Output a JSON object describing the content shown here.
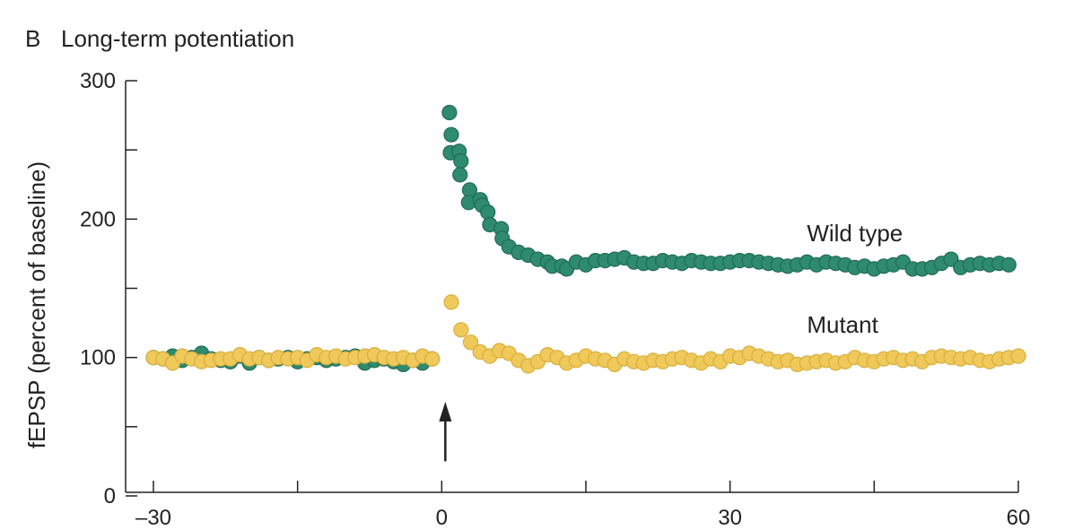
{
  "chart_data": {
    "type": "scatter",
    "panel_letter": "B",
    "title": "Long-term potentiation",
    "xlabel": "",
    "ylabel": "fEPSP (percent of baseline)",
    "xlim": [
      -30,
      60
    ],
    "ylim": [
      0,
      300
    ],
    "x_tick_labels": [
      {
        "value": -30,
        "label": "–30"
      },
      {
        "value": 0,
        "label": "0"
      },
      {
        "value": 30,
        "label": "30"
      },
      {
        "value": 60,
        "label": "60"
      }
    ],
    "x_minor_ticks": [
      -15,
      15,
      45
    ],
    "y_tick_labels": [
      {
        "value": 0,
        "label": "0"
      },
      {
        "value": 100,
        "label": "100"
      },
      {
        "value": 200,
        "label": "200"
      },
      {
        "value": 300,
        "label": "300"
      }
    ],
    "y_minor_ticks": [
      50,
      150,
      250
    ],
    "annotation": {
      "type": "arrow",
      "x": 0,
      "y_from": 25,
      "y_to": 68
    },
    "series": [
      {
        "name": "Wild type",
        "label": "Wild type",
        "label_at": [
          38,
          184
        ],
        "color": "#2f8b6e",
        "edge": "#1f6b54",
        "points": [
          [
            -30,
            100
          ],
          [
            -29,
            99
          ],
          [
            -28,
            101
          ],
          [
            -27,
            98
          ],
          [
            -26,
            100
          ],
          [
            -25,
            103
          ],
          [
            -24,
            99
          ],
          [
            -23,
            98
          ],
          [
            -22,
            97
          ],
          [
            -21,
            101
          ],
          [
            -20,
            96
          ],
          [
            -19,
            100
          ],
          [
            -18,
            98
          ],
          [
            -17,
            99
          ],
          [
            -16,
            100
          ],
          [
            -15,
            97
          ],
          [
            -14,
            99
          ],
          [
            -13,
            100
          ],
          [
            -12,
            98
          ],
          [
            -11,
            99
          ],
          [
            -10,
            100
          ],
          [
            -9,
            101
          ],
          [
            -8,
            96
          ],
          [
            -7,
            98
          ],
          [
            -6,
            99
          ],
          [
            -5,
            97
          ],
          [
            -4,
            95
          ],
          [
            -3,
            98
          ],
          [
            -2,
            96
          ],
          [
            -1,
            99
          ],
          [
            0.8,
            277
          ],
          [
            1,
            261
          ],
          [
            0.9,
            248
          ],
          [
            1.8,
            249
          ],
          [
            2.0,
            242
          ],
          [
            1.9,
            232
          ],
          [
            2.9,
            221
          ],
          [
            2.8,
            212
          ],
          [
            4,
            214
          ],
          [
            4.2,
            210
          ],
          [
            4.8,
            205
          ],
          [
            5,
            196
          ],
          [
            6.2,
            193
          ],
          [
            6.3,
            186
          ],
          [
            7,
            180
          ],
          [
            8,
            176
          ],
          [
            9,
            174
          ],
          [
            10,
            171
          ],
          [
            11,
            169
          ],
          [
            11.5,
            166
          ],
          [
            12.5,
            166
          ],
          [
            13,
            164
          ],
          [
            14,
            169
          ],
          [
            15,
            167
          ],
          [
            16,
            170
          ],
          [
            17,
            170
          ],
          [
            18,
            171
          ],
          [
            19,
            172
          ],
          [
            20,
            169
          ],
          [
            21,
            168
          ],
          [
            22,
            168
          ],
          [
            23,
            170
          ],
          [
            24,
            169
          ],
          [
            25,
            168
          ],
          [
            26,
            170
          ],
          [
            27,
            169
          ],
          [
            28,
            168
          ],
          [
            29,
            168
          ],
          [
            30,
            169
          ],
          [
            31,
            170
          ],
          [
            32,
            170
          ],
          [
            33,
            169
          ],
          [
            34,
            168
          ],
          [
            35,
            167
          ],
          [
            36,
            166
          ],
          [
            37,
            167
          ],
          [
            38,
            169
          ],
          [
            39,
            167
          ],
          [
            40,
            169
          ],
          [
            41,
            168
          ],
          [
            42,
            167
          ],
          [
            43,
            165
          ],
          [
            44,
            166
          ],
          [
            45,
            164
          ],
          [
            46,
            166
          ],
          [
            47,
            167
          ],
          [
            48,
            169
          ],
          [
            49,
            164
          ],
          [
            50,
            164
          ],
          [
            51,
            165
          ],
          [
            52,
            168
          ],
          [
            53,
            171
          ],
          [
            54,
            165
          ],
          [
            55,
            167
          ],
          [
            56,
            168
          ],
          [
            57,
            167
          ],
          [
            58,
            168
          ],
          [
            59,
            167
          ]
        ]
      },
      {
        "name": "Mutant",
        "label": "Mutant",
        "label_at": [
          38,
          118
        ],
        "color": "#efc95a",
        "edge": "#d9ae3c",
        "points": [
          [
            -30,
            100
          ],
          [
            -29,
            99
          ],
          [
            -28,
            96
          ],
          [
            -27,
            101
          ],
          [
            -26,
            99
          ],
          [
            -25,
            97
          ],
          [
            -24,
            98
          ],
          [
            -23,
            99
          ],
          [
            -22,
            99
          ],
          [
            -21,
            102
          ],
          [
            -20,
            99
          ],
          [
            -19,
            100
          ],
          [
            -18,
            98
          ],
          [
            -17,
            100
          ],
          [
            -16,
            99
          ],
          [
            -15,
            100
          ],
          [
            -14,
            98
          ],
          [
            -13,
            102
          ],
          [
            -12,
            100
          ],
          [
            -11,
            101
          ],
          [
            -10,
            99
          ],
          [
            -9,
            100
          ],
          [
            -8,
            101
          ],
          [
            -7,
            102
          ],
          [
            -6,
            100
          ],
          [
            -5,
            99
          ],
          [
            -4,
            100
          ],
          [
            -3,
            98
          ],
          [
            -2,
            101
          ],
          [
            -1,
            99
          ],
          [
            1,
            140
          ],
          [
            2,
            120
          ],
          [
            3,
            111
          ],
          [
            4,
            104
          ],
          [
            5,
            101
          ],
          [
            6,
            105
          ],
          [
            7,
            103
          ],
          [
            8,
            98
          ],
          [
            9,
            94
          ],
          [
            10,
            97
          ],
          [
            11,
            102
          ],
          [
            12,
            100
          ],
          [
            13,
            96
          ],
          [
            14,
            98
          ],
          [
            15,
            101
          ],
          [
            16,
            99
          ],
          [
            17,
            98
          ],
          [
            18,
            95
          ],
          [
            19,
            99
          ],
          [
            20,
            97
          ],
          [
            21,
            96
          ],
          [
            22,
            98
          ],
          [
            23,
            97
          ],
          [
            24,
            99
          ],
          [
            25,
            100
          ],
          [
            26,
            98
          ],
          [
            27,
            96
          ],
          [
            28,
            99
          ],
          [
            29,
            97
          ],
          [
            30,
            101
          ],
          [
            31,
            100
          ],
          [
            32,
            103
          ],
          [
            33,
            101
          ],
          [
            34,
            99
          ],
          [
            35,
            97
          ],
          [
            36,
            98
          ],
          [
            37,
            95
          ],
          [
            38,
            96
          ],
          [
            39,
            97
          ],
          [
            40,
            98
          ],
          [
            41,
            96
          ],
          [
            42,
            97
          ],
          [
            43,
            100
          ],
          [
            44,
            98
          ],
          [
            45,
            97
          ],
          [
            46,
            99
          ],
          [
            47,
            100
          ],
          [
            48,
            98
          ],
          [
            49,
            99
          ],
          [
            50,
            97
          ],
          [
            51,
            100
          ],
          [
            52,
            101
          ],
          [
            53,
            100
          ],
          [
            54,
            99
          ],
          [
            55,
            100
          ],
          [
            56,
            98
          ],
          [
            57,
            97
          ],
          [
            58,
            99
          ],
          [
            59,
            100
          ],
          [
            60,
            101
          ]
        ]
      }
    ]
  }
}
